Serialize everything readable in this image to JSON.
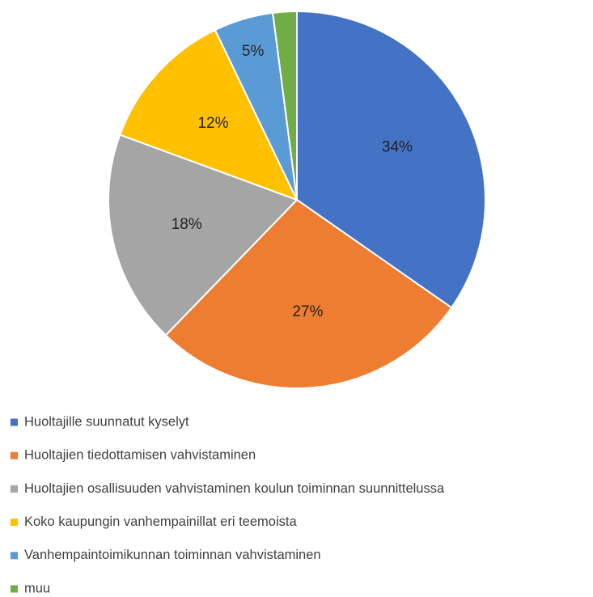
{
  "chart_data": {
    "type": "pie",
    "categories": [
      "Huoltajille suunnatut kyselyt",
      "Huoltajien tiedottamisen vahvistaminen",
      "Huoltajien osallisuuden vahvistaminen koulun toiminnan suunnittelussa",
      "Koko kaupungin vanhempainillat eri teemoista",
      "Vanhempaintoimikunnan toiminnan vahvistaminen",
      "muu"
    ],
    "values": [
      34,
      27,
      18,
      12,
      5,
      2
    ],
    "value_labels": [
      "34%",
      "27%",
      "18%",
      "12%",
      "5%",
      null
    ],
    "colors": [
      "#4472c4",
      "#ed7d31",
      "#a5a5a5",
      "#ffc000",
      "#5b9bd5",
      "#70ad47"
    ],
    "legend": "bottom-left"
  }
}
